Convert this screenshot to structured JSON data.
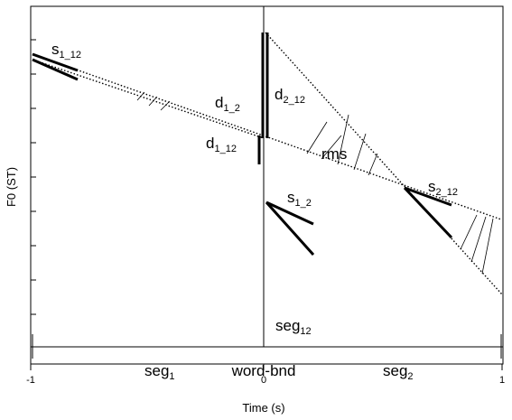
{
  "axes": {
    "ylabel": "F0 (ST)",
    "xlabel": "Time (s)",
    "xticks": [
      "-1",
      "0",
      "1"
    ]
  },
  "labels": {
    "s1_12": {
      "main": "s",
      "sub": "1_12"
    },
    "d1_2": {
      "main": "d",
      "sub": "1_2"
    },
    "d2_12": {
      "main": "d",
      "sub": "2_12"
    },
    "d1_12": {
      "main": "d",
      "sub": "1_12"
    },
    "rms": "rms",
    "s1_2": {
      "main": "s",
      "sub": "1_2"
    },
    "s2_12": {
      "main": "s",
      "sub": "2_12"
    },
    "seg12": {
      "main": "seg",
      "sub": "12"
    },
    "seg1": {
      "main": "seg",
      "sub": "1"
    },
    "word_bnd": "word-bnd",
    "seg2": {
      "main": "seg",
      "sub": "2"
    }
  }
}
